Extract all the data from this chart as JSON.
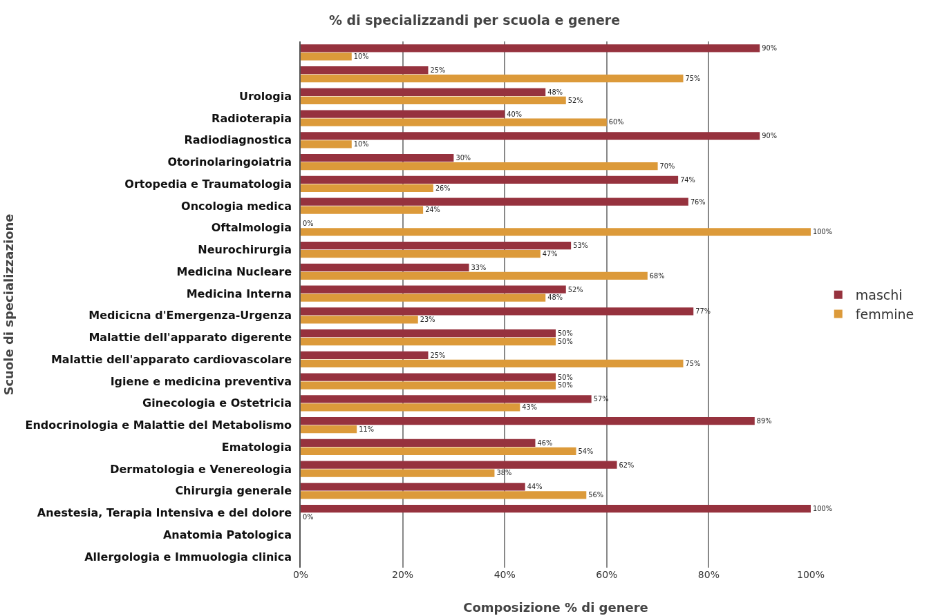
{
  "chart_data": {
    "type": "bar",
    "orientation": "horizontal",
    "title": "% di specializzandi per scuola e genere",
    "xlabel": "Composizione % di genere",
    "ylabel": "Scuole di specializzazione",
    "categories": [
      null,
      null,
      "Urologia",
      "Radioterapia",
      "Radiodiagnostica",
      "Otorinolaringoiatria",
      "Ortopedia e Traumatologia",
      "Oncologia medica",
      "Oftalmologia",
      "Neurochirurgia",
      "Medicina Nucleare",
      "Medicina Interna",
      "Medicicna d'Emergenza-Urgenza",
      "Malattie dell'apparato digerente",
      "Malattie dell'apparato cardiovascolare",
      "Igiene e medicina preventiva",
      "Ginecologia e Ostetricia",
      "Endocrinologia e Malattie del Metabolismo",
      "Ematologia",
      "Dermatologia e Venereologia",
      "Chirurgia generale",
      "Anestesia, Terapia Intensiva e del dolore",
      "Anatomia Patologica",
      "Allergologia e Immuologia clinica"
    ],
    "series": [
      {
        "name": "maschi",
        "color": "#96323e",
        "values": [
          90,
          25,
          48,
          40,
          90,
          30,
          74,
          76,
          0,
          53,
          33,
          52,
          77,
          50,
          25,
          50,
          57,
          89,
          46,
          62,
          44,
          100,
          null,
          null
        ],
        "value_labels": [
          "90%",
          "25%",
          "48%",
          "40%",
          "90%",
          "30%",
          "74%",
          "76%",
          "0%",
          "53%",
          "33%",
          "52%",
          "77%",
          "50%",
          "25%",
          "50%",
          "57%",
          "89%",
          "46%",
          "62%",
          "44%",
          "100%",
          null,
          null
        ]
      },
      {
        "name": "femmine",
        "color": "#dc9a3a",
        "values": [
          10,
          75,
          52,
          60,
          10,
          70,
          26,
          24,
          100,
          47,
          68,
          48,
          23,
          50,
          75,
          50,
          43,
          11,
          54,
          38,
          56,
          0,
          null,
          null
        ],
        "value_labels": [
          "10%",
          "75%",
          "52%",
          "60%",
          "10%",
          "70%",
          "26%",
          "24%",
          "100%",
          "47%",
          "68%",
          "48%",
          "23%",
          "50%",
          "75%",
          "50%",
          "43%",
          "11%",
          "54%",
          "38%",
          "56%",
          "0%",
          null,
          null
        ]
      }
    ],
    "xlim": [
      0,
      100
    ],
    "xticks": [
      {
        "value": 0,
        "label": "0%"
      },
      {
        "value": 20,
        "label": "20%"
      },
      {
        "value": 40,
        "label": "40%"
      },
      {
        "value": 60,
        "label": "60%"
      },
      {
        "value": 80,
        "label": "80%"
      },
      {
        "value": 100,
        "label": "100%"
      }
    ],
    "grid": "x",
    "legend": "right"
  }
}
